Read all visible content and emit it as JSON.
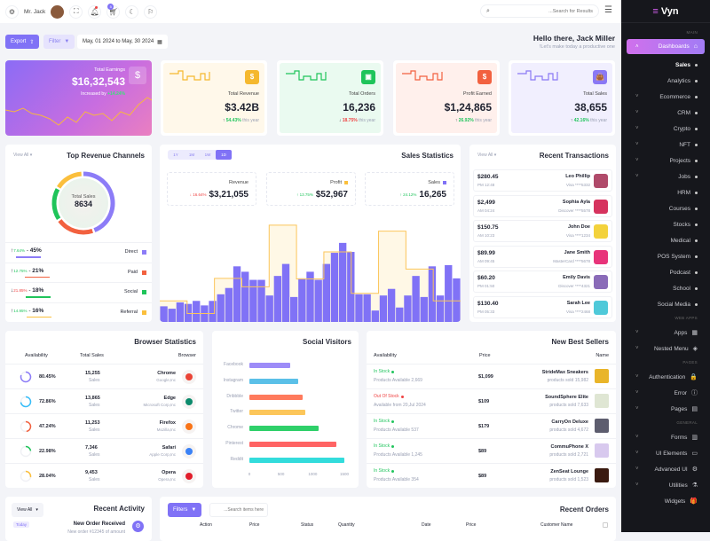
{
  "header": {
    "user": "Mr. Jack",
    "cart_badge": "5",
    "search_placeholder": "...Search for Results"
  },
  "toolbar": {
    "export": "Export",
    "filter": "Filter",
    "date_range": "May, 01 2024 to May, 30 2024",
    "greeting": "Hello there, Jack Miller",
    "subtitle": "!Let's make today a productive one"
  },
  "earnings": {
    "label": "Total Earnings",
    "value": "$16,32,543",
    "increase_label": "Increased by",
    "increase": "+14.24%"
  },
  "kpis": [
    {
      "label": "Total Revenue",
      "value": "$3.42B",
      "change": "54.43%",
      "dir": "up",
      "suffix": "this year",
      "color": "#f5b82e",
      "icon": "$"
    },
    {
      "label": "Total Orders",
      "value": "16,236",
      "change": "18.75%",
      "dir": "down",
      "suffix": "this year",
      "color": "#1fc45a",
      "icon": "▣"
    },
    {
      "label": "Profit Earned",
      "value": "$1,24,865",
      "change": "26.92%",
      "dir": "up",
      "suffix": "this year",
      "color": "#f2613f",
      "icon": "$"
    },
    {
      "label": "Total Sales",
      "value": "38,655",
      "change": "42.16%",
      "dir": "up",
      "suffix": "this year",
      "color": "#8a78f5",
      "icon": "👜"
    }
  ],
  "channels": {
    "title": "Top Revenue Channels",
    "view_all": "View All",
    "center_label": "Total Sales",
    "center_value": "8634",
    "items": [
      {
        "name": "Direct",
        "share": "45%",
        "change": "7.64%",
        "dir": "up",
        "color": "#8c7cf7",
        "pct": 45
      },
      {
        "name": "Paid",
        "share": "21%",
        "change": "12.75%",
        "dir": "up",
        "color": "#f2613f",
        "pct": 21
      },
      {
        "name": "Social",
        "share": "18%",
        "change": "21.85%",
        "dir": "down",
        "color": "#1fc45a",
        "pct": 18
      },
      {
        "name": "Referral",
        "share": "16%",
        "change": "14.95%",
        "dir": "up",
        "color": "#fbbf3c",
        "pct": 16
      }
    ]
  },
  "sales_stats": {
    "title": "Sales Statistics",
    "ranges": [
      "1Y",
      "1M",
      "1W",
      "1D"
    ],
    "active_range": "1D",
    "boxes": [
      {
        "label": "Revenue",
        "value": "$3,21,055",
        "change": "16.64%",
        "dir": "down"
      },
      {
        "label": "Profit",
        "value": "$52,967",
        "change": "13.75%",
        "dir": "up",
        "color": "#fbbf3c"
      },
      {
        "label": "Sales",
        "value": "16,265",
        "change": "24.12%",
        "dir": "up",
        "color": "#8072f6"
      }
    ]
  },
  "chart_data": {
    "type": "bar",
    "title": "Sales Statistics",
    "series": [
      {
        "name": "Sales",
        "type": "bar",
        "color": "#8072f6",
        "values": [
          52,
          44,
          65,
          60,
          70,
          55,
          70,
          92,
          113,
          185,
          167,
          140,
          140,
          88,
          153,
          193,
          83,
          145,
          167,
          140,
          193,
          230,
          263,
          233,
          92,
          92,
          38,
          88,
          110,
          48,
          88,
          153,
          83,
          185,
          88,
          189,
          145
        ]
      },
      {
        "name": "Profit",
        "type": "step-area",
        "color": "#fbbf3c",
        "values": [
          70,
          28,
          145,
          117,
          322,
          143,
          233,
          95,
          302,
          176,
          70
        ]
      }
    ],
    "ylim": [
      0,
      360
    ]
  },
  "transactions": {
    "title": "Recent Transactions",
    "view_all": "View All",
    "items": [
      {
        "amount": "$280.45",
        "time": "PM 12:48",
        "name": "Leo Phillip",
        "card": "Visa ****5332",
        "color": "#b04a6a"
      },
      {
        "amount": "$2,499",
        "time": "AM 04:24",
        "name": "Sophia Ayla",
        "card": "Discover ****5578",
        "color": "#d6335e"
      },
      {
        "amount": "$150.75",
        "time": "AM 10:23",
        "name": "John Doe",
        "card": "Visa ****1234",
        "color": "#f3d23c"
      },
      {
        "amount": "$89.99",
        "time": "AM 09:45",
        "name": "Jane Smith",
        "card": "MasterCard ****5678",
        "color": "#e8347a"
      },
      {
        "amount": "$60.20",
        "time": "PM 01:50",
        "name": "Emily Davis",
        "card": "Discover ****4321",
        "color": "#8a6bb8"
      },
      {
        "amount": "$130.40",
        "time": "PM 05:33",
        "name": "Sarah Lee",
        "card": "Visa ****2468",
        "color": "#4fc9d9"
      }
    ]
  },
  "browsers": {
    "title": "Browser Statistics",
    "cols": [
      "Availability",
      "Total Sales",
      "Browser"
    ],
    "sales_label": "Sales",
    "items": [
      {
        "pct": "80.45%",
        "v": 80.45,
        "sales": "15,255",
        "name": "Chrome",
        "company": "Google,Inc",
        "color": "#8c7cf7",
        "icon_color": "#ea4335"
      },
      {
        "pct": "72.86%",
        "v": 72.86,
        "sales": "13,865",
        "name": "Edge",
        "company": "Microsoft Corp,Inc",
        "color": "#38bdf8",
        "icon_color": "#0c8a6c"
      },
      {
        "pct": "47.24%",
        "v": 47.24,
        "sales": "11,253",
        "name": "Firefox",
        "company": "Mozilla,Inc",
        "color": "#f2613f",
        "icon_color": "#f97316"
      },
      {
        "pct": "22.98%",
        "v": 22.98,
        "sales": "7,346",
        "name": "Safari",
        "company": "Apple Corp,Inc",
        "color": "#1fc45a",
        "icon_color": "#3b82f6"
      },
      {
        "pct": "28.04%",
        "v": 28.04,
        "sales": "9,453",
        "name": "Opera",
        "company": "Opera,Inc",
        "color": "#fbbf3c",
        "icon_color": "#e11d2a"
      }
    ]
  },
  "social": {
    "title": "Social Visitors",
    "ticks": [
      "0",
      "500",
      "1000",
      "1500"
    ],
    "items": [
      {
        "name": "Facebook",
        "value": 650,
        "color": "#9d8cf8"
      },
      {
        "name": "Instagram",
        "value": 770,
        "color": "#5bc0e8"
      },
      {
        "name": "Dribbble",
        "value": 840,
        "color": "#ff7a5c"
      },
      {
        "name": "Twitter",
        "value": 890,
        "color": "#fcc65a"
      },
      {
        "name": "Chrome",
        "value": 1100,
        "color": "#2fd06a"
      },
      {
        "name": "Pinterest",
        "value": 1380,
        "color": "#ff6464"
      },
      {
        "name": "Reddit",
        "value": 1500,
        "color": "#33dcdc"
      }
    ]
  },
  "sellers": {
    "title": "New Best Sellers",
    "cols": [
      "Availability",
      "Price",
      "Name"
    ],
    "items": [
      {
        "status": "In Stock",
        "ok": true,
        "avail": "Products Available 2,669",
        "price": "$1,099",
        "name": "StrideMax Sneakers",
        "sold": "products sold 15,982",
        "color": "#e9b52a"
      },
      {
        "status": "Out Of Stock",
        "ok": false,
        "avail": "Available from 20,Jul 2024",
        "price": "$109",
        "name": "SoundSphere Elite",
        "sold": "products sold 7,633",
        "color": "#dfe6d3"
      },
      {
        "status": "In Stock",
        "ok": true,
        "avail": "Products Available 537",
        "price": "$179",
        "name": "CarryOn Deluxe",
        "sold": "products sold 4,672",
        "color": "#5d5d6e"
      },
      {
        "status": "In Stock",
        "ok": true,
        "avail": "Products Available 1,245",
        "price": "$89",
        "name": "CommuPhone X",
        "sold": "products sold 2,721",
        "color": "#d8c9ee"
      },
      {
        "status": "In Stock",
        "ok": true,
        "avail": "Products Available 354",
        "price": "$89",
        "name": "ZenSeat Lounge",
        "sold": "products sold 1,523",
        "color": "#3a1a10"
      }
    ]
  },
  "activity": {
    "title": "Recent Activity",
    "view_all": "View All",
    "badge": "Today",
    "item_title": "New Order Received",
    "item_text": "New order #12345 of amount"
  },
  "orders": {
    "title": "Recent Orders",
    "filters": "Filters",
    "search_placeholder": "...Search items here",
    "cols": [
      "Action",
      "Price",
      "Status",
      "Quantity",
      "Date",
      "Price",
      "Customer Name"
    ]
  },
  "sidebar": {
    "brand": "Vyn",
    "sections": [
      {
        "label": "MAIN",
        "items": [
          {
            "label": "Dashboards",
            "active": true,
            "chev": "^",
            "glyph": "⌂"
          },
          {
            "label": "Sales",
            "sub": true,
            "bold": true
          },
          {
            "label": "Analytics",
            "sub": true
          },
          {
            "label": "Ecommerce",
            "chev": "v",
            "sub": true
          },
          {
            "label": "CRM",
            "chev": "v",
            "sub": true
          },
          {
            "label": "Crypto",
            "chev": "v",
            "sub": true
          },
          {
            "label": "NFT",
            "chev": "v",
            "sub": true
          },
          {
            "label": "Projects",
            "chev": "v",
            "sub": true
          },
          {
            "label": "Jobs",
            "chev": "v",
            "sub": true
          },
          {
            "label": "HRM",
            "sub": true
          },
          {
            "label": "Courses",
            "sub": true
          },
          {
            "label": "Stocks",
            "sub": true
          },
          {
            "label": "Medical",
            "sub": true
          },
          {
            "label": "POS System",
            "sub": true
          },
          {
            "label": "Podcast",
            "sub": true
          },
          {
            "label": "School",
            "sub": true
          },
          {
            "label": "Social Media",
            "sub": true
          }
        ]
      },
      {
        "label": "WEB APPS",
        "items": [
          {
            "label": "Apps",
            "chev": "v",
            "glyph": "▦"
          },
          {
            "label": "Nested Menu",
            "chev": "v",
            "glyph": "◈"
          }
        ]
      },
      {
        "label": "PAGES",
        "items": [
          {
            "label": "Authentication",
            "chev": "v",
            "glyph": "🔒"
          },
          {
            "label": "Error",
            "chev": "v",
            "glyph": "ⓘ"
          },
          {
            "label": "Pages",
            "chev": "v",
            "glyph": "▤"
          }
        ]
      },
      {
        "label": "GENERAL",
        "items": [
          {
            "label": "Forms",
            "chev": "v",
            "glyph": "▥"
          },
          {
            "label": "UI Elements",
            "chev": "v",
            "glyph": "▭"
          },
          {
            "label": "Advanced UI",
            "chev": "v",
            "glyph": "⚙"
          },
          {
            "label": "Utilities",
            "chev": "v",
            "glyph": "⚗"
          },
          {
            "label": "Widgets",
            "glyph": "🎁"
          }
        ]
      }
    ]
  }
}
